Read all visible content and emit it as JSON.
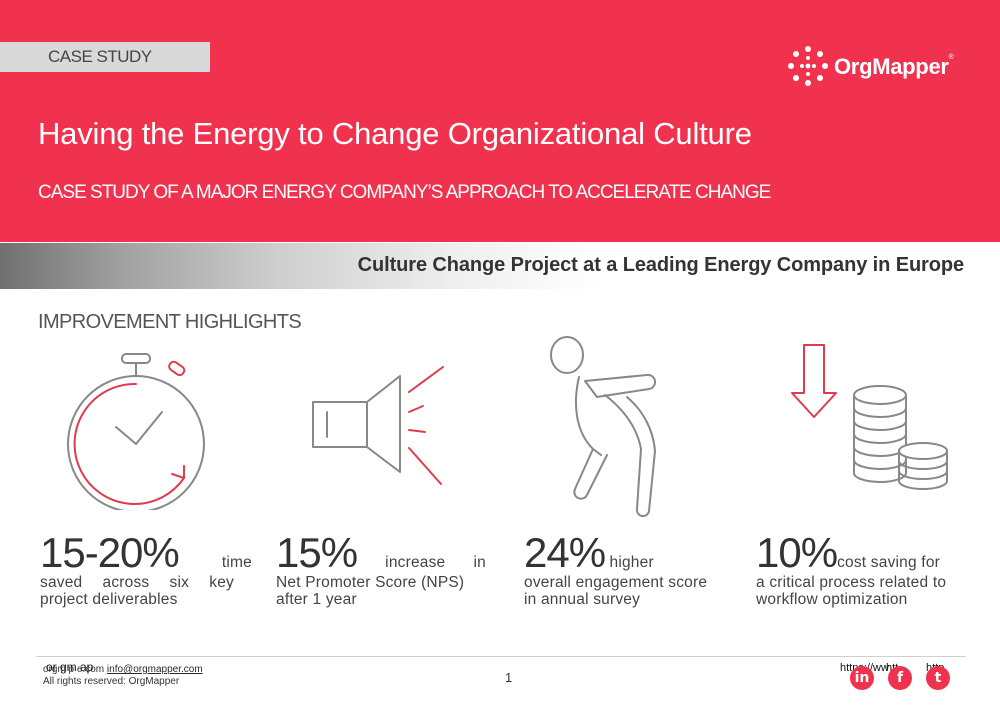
{
  "header": {
    "tag": "CASE STUDY",
    "logo_text": "OrgMapper",
    "logo_mark": "®",
    "title": "Having the Energy to Change Organizational Culture",
    "subtitle": "CASE STUDY OF A MAJOR ENERGY COMPANY’S APPROACH TO ACCELERATE  CHANGE"
  },
  "band": {
    "text": "Culture Change Project at a Leading Energy Company in Europe"
  },
  "section": {
    "title": "IMPROVEMENT HIGHLIGHTS"
  },
  "highlights": [
    {
      "value": "15-20%",
      "lead": "time",
      "desc": "saved across six key project deliverables",
      "icon": "stopwatch-icon"
    },
    {
      "value": "15%",
      "lead": "increase in",
      "desc": "Net Promoter Score (NPS) after 1 year",
      "icon": "megaphone-icon"
    },
    {
      "value": "24%",
      "lead": "higher",
      "desc": "overall engagement score in annual survey",
      "icon": "energetic-person-icon"
    },
    {
      "value": "10%",
      "lead": "cost saving for",
      "desc": "a critical process related to workflow optimization",
      "icon": "cost-coins-down-icon"
    }
  ],
  "footer": {
    "broken_text": "or gm ap",
    "contact_prefix": "orgm  p  e.com",
    "email": "info@orgmapper.com",
    "rights": "All rights reserved: OrgMapper",
    "page": "1",
    "social": [
      {
        "name": "linkedin-icon",
        "glyph": "in",
        "label": "https://ww"
      },
      {
        "name": "facebook-icon",
        "glyph": "f",
        "label": "htt"
      },
      {
        "name": "twitter-icon",
        "glyph": "t",
        "label": "http"
      }
    ]
  },
  "colors": {
    "accent": "#f0324f",
    "band_dark": "#707070",
    "text": "#444444"
  }
}
